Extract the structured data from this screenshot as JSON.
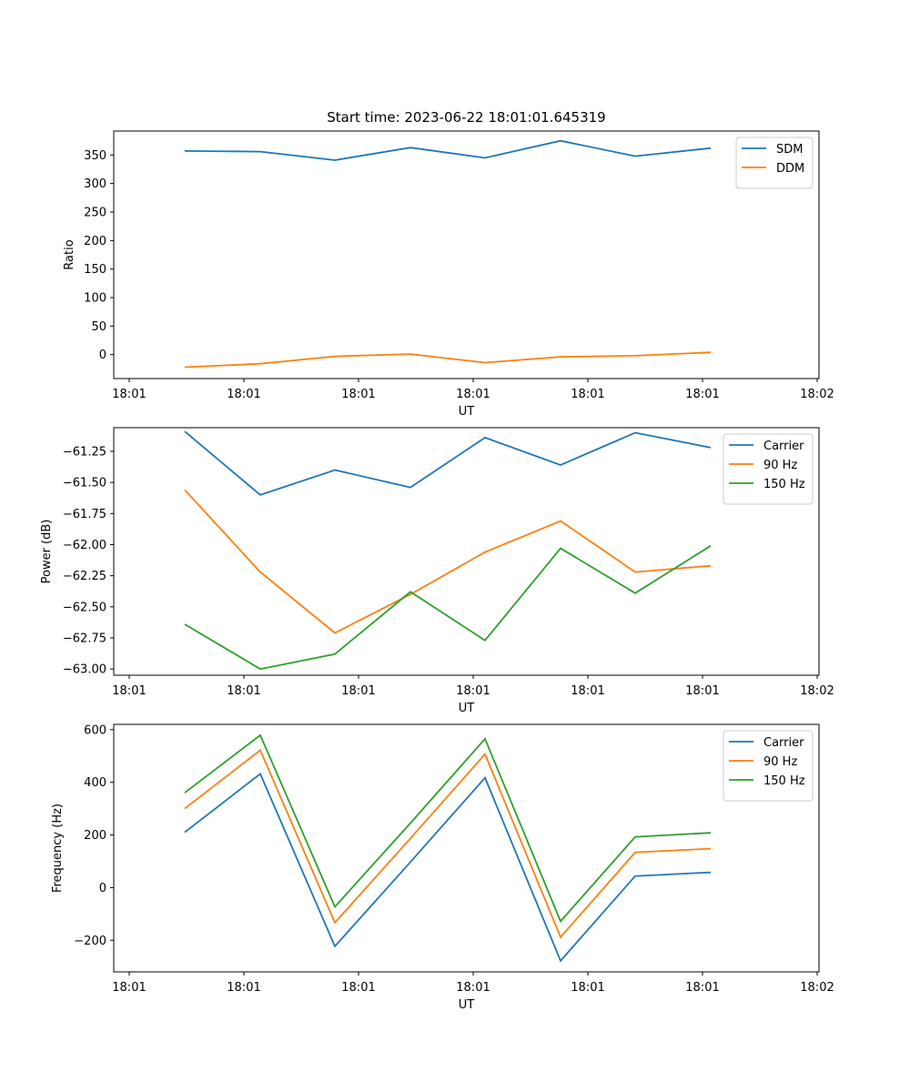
{
  "title": "Start time: 2023-06-22 18:01:01.645319",
  "chart_data": [
    {
      "type": "line",
      "xlabel": "UT",
      "ylabel": "Ratio",
      "x_tick_labels": [
        "18:01",
        "18:01",
        "18:01",
        "18:01",
        "18:01",
        "18:01",
        "18:02"
      ],
      "ylim": [
        -42,
        392
      ],
      "yticks": [
        0,
        50,
        100,
        150,
        200,
        250,
        300,
        350
      ],
      "legend_position": "top-right",
      "series": [
        {
          "name": "SDM",
          "color": "#1f77b4",
          "values": [
            357,
            356,
            341,
            363,
            345,
            375,
            348,
            362
          ]
        },
        {
          "name": "DDM",
          "color": "#ff7f0e",
          "values": [
            -22,
            -16,
            -3,
            1,
            -14,
            -4,
            -2,
            4
          ]
        }
      ]
    },
    {
      "type": "line",
      "xlabel": "UT",
      "ylabel": "Power (dB)",
      "x_tick_labels": [
        "18:01",
        "18:01",
        "18:01",
        "18:01",
        "18:01",
        "18:01",
        "18:02"
      ],
      "ylim": [
        -63.05,
        -61.06
      ],
      "yticks": [
        -63.0,
        -62.75,
        -62.5,
        -62.25,
        -62.0,
        -61.75,
        -61.5,
        -61.25
      ],
      "ytick_labels": [
        "−63.00",
        "−62.75",
        "−62.50",
        "−62.25",
        "−62.00",
        "−61.75",
        "−61.50",
        "−61.25"
      ],
      "legend_position": "top-right",
      "series": [
        {
          "name": "Carrier",
          "color": "#1f77b4",
          "values": [
            -61.09,
            -61.6,
            -61.4,
            -61.54,
            -61.14,
            -61.36,
            -61.1,
            -61.22
          ]
        },
        {
          "name": "90 Hz",
          "color": "#ff7f0e",
          "values": [
            -61.56,
            -62.22,
            -62.71,
            -62.4,
            -62.06,
            -61.81,
            -62.22,
            -62.17
          ]
        },
        {
          "name": "150 Hz",
          "color": "#2ca02c",
          "values": [
            -62.64,
            -63.0,
            -62.88,
            -62.38,
            -62.77,
            -62.03,
            -62.39,
            -62.01
          ]
        }
      ]
    },
    {
      "type": "line",
      "xlabel": "UT",
      "ylabel": "Frequency (Hz)",
      "x_tick_labels": [
        "18:01",
        "18:01",
        "18:01",
        "18:01",
        "18:01",
        "18:01",
        "18:02"
      ],
      "ylim": [
        -320,
        620
      ],
      "yticks": [
        -200,
        0,
        200,
        400,
        600
      ],
      "ytick_labels": [
        "−200",
        "0",
        "200",
        "400",
        "600"
      ],
      "legend_position": "top-right",
      "series": [
        {
          "name": "Carrier",
          "color": "#1f77b4",
          "values": [
            210,
            432,
            -223,
            97,
            417,
            -278,
            44,
            58
          ]
        },
        {
          "name": "90 Hz",
          "color": "#ff7f0e",
          "values": [
            300,
            522,
            -133,
            187,
            507,
            -188,
            134,
            148
          ]
        },
        {
          "name": "150 Hz",
          "color": "#2ca02c",
          "values": [
            360,
            579,
            -73,
            245,
            565,
            -128,
            193,
            208
          ]
        }
      ]
    }
  ]
}
